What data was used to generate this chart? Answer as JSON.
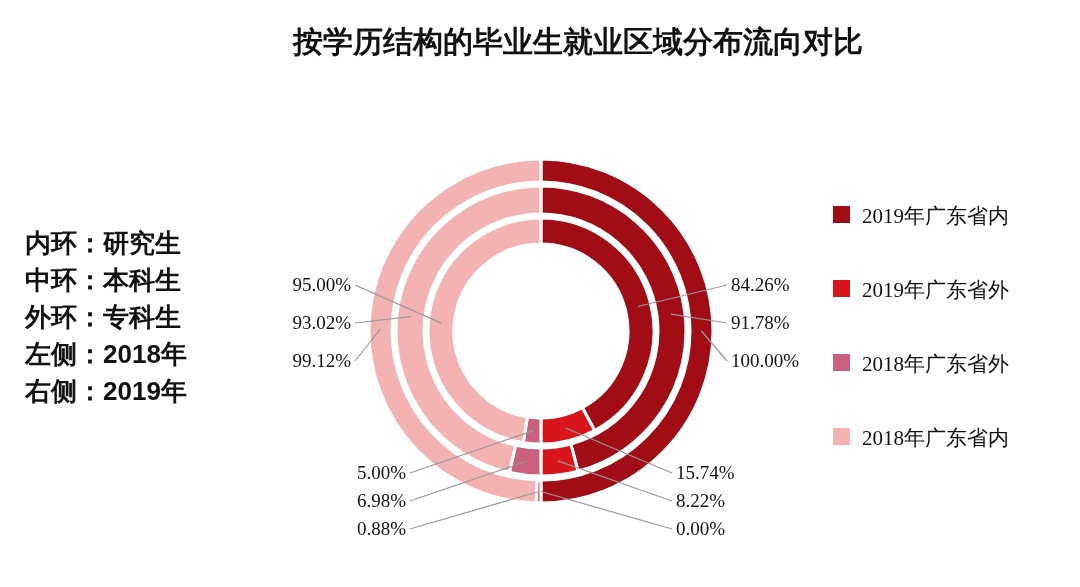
{
  "chart_data": {
    "type": "donut",
    "title": "按学历结构的毕业生就业区域分布流向对比",
    "categories": [
      "2019年广东省内",
      "2019年广东省外",
      "2018年广东省外",
      "2018年广东省内"
    ],
    "colors": [
      "#a00d14",
      "#d8151b",
      "#c8607e",
      "#f4b3b3"
    ],
    "series": [
      {
        "values": [
          84.26,
          15.74,
          5.0,
          95.0
        ],
        "value_labels": [
          "84.26%",
          "15.74%",
          "5.00%",
          "95.00%"
        ]
      },
      {
        "values": [
          91.78,
          8.22,
          6.98,
          93.02
        ],
        "value_labels": [
          "91.78%",
          "8.22%",
          "6.98%",
          "93.02%"
        ]
      },
      {
        "values": [
          100.0,
          0.0,
          0.88,
          99.12
        ],
        "value_labels": [
          "100.00%",
          "0.00%",
          "0.88%",
          "99.12%"
        ]
      }
    ],
    "legend": "right",
    "annotations": [
      "内环：研究生",
      "中环：本科生",
      "外环：专科生",
      "左侧：2018年",
      "右侧：2019年"
    ]
  }
}
